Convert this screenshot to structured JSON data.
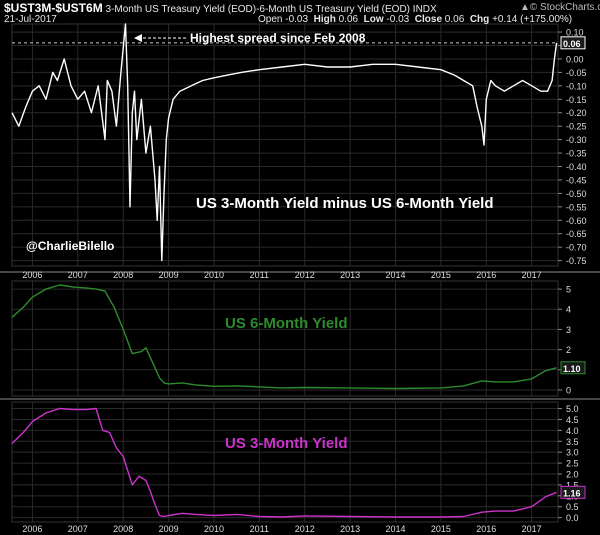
{
  "header": {
    "symbol": "$UST3M-$UST6M",
    "description": "3-Month US Treasury Yield (EOD)-6-Month US Treasury Yield (EOD)",
    "exchange": "INDX",
    "date": "21-Jul-2017",
    "open_label": "Open",
    "open_value": "-0.03",
    "high_label": "High",
    "high_value": "0.06",
    "low_label": "Low",
    "low_value": "-0.03",
    "close_label": "Close",
    "close_value": "0.06",
    "chg_label": "Chg",
    "chg_value": "+0.14 (+175.00%)",
    "watermark": "© StockCharts.com",
    "watermark_arrow": "▲"
  },
  "colors": {
    "background": "#000000",
    "spread_line": "#ffffff",
    "six_month_line": "#2e8b2e",
    "three_month_line": "#cc33cc",
    "grid": "#2a2a2a",
    "separator": "#8a8a8a"
  },
  "chart_data": [
    {
      "type": "line",
      "title": "US 3-Month Yield minus US 6-Month Yield",
      "annotation": "Highest spread since Feb 2008",
      "credit": "@CharlieBilello",
      "last_value_label": "0.06",
      "ylim": [
        -0.77,
        0.13
      ],
      "yticks": [
        "0.10",
        "0.05",
        "0.00",
        "-0.05",
        "-0.10",
        "-0.15",
        "-0.20",
        "-0.25",
        "-0.30",
        "-0.35",
        "-0.40",
        "-0.45",
        "-0.50",
        "-0.55",
        "-0.60",
        "-0.65",
        "-0.70",
        "-0.75"
      ],
      "x": [
        2005.55,
        2005.7,
        2005.85,
        2006.0,
        2006.15,
        2006.3,
        2006.45,
        2006.55,
        2006.7,
        2006.85,
        2007.0,
        2007.15,
        2007.3,
        2007.45,
        2007.6,
        2007.65,
        2007.75,
        2007.85,
        2007.95,
        2008.05,
        2008.1,
        2008.15,
        2008.2,
        2008.25,
        2008.3,
        2008.4,
        2008.5,
        2008.6,
        2008.7,
        2008.75,
        2008.8,
        2008.85,
        2008.9,
        2008.95,
        2009.0,
        2009.1,
        2009.25,
        2009.5,
        2009.75,
        2010.0,
        2010.3,
        2010.6,
        2011.0,
        2011.5,
        2012.0,
        2012.5,
        2013.0,
        2013.5,
        2014.0,
        2014.5,
        2015.0,
        2015.3,
        2015.5,
        2015.7,
        2015.8,
        2015.9,
        2015.95,
        2016.0,
        2016.1,
        2016.2,
        2016.4,
        2016.6,
        2016.8,
        2017.0,
        2017.2,
        2017.35,
        2017.45,
        2017.5,
        2017.55
      ],
      "y": [
        -0.2,
        -0.25,
        -0.18,
        -0.12,
        -0.1,
        -0.15,
        -0.05,
        -0.08,
        0.0,
        -0.1,
        -0.15,
        -0.12,
        -0.2,
        -0.1,
        -0.3,
        -0.08,
        -0.12,
        -0.25,
        -0.05,
        0.13,
        -0.1,
        -0.55,
        -0.2,
        -0.12,
        -0.3,
        -0.15,
        -0.35,
        -0.25,
        -0.45,
        -0.6,
        -0.4,
        -0.75,
        -0.5,
        -0.3,
        -0.22,
        -0.15,
        -0.12,
        -0.1,
        -0.08,
        -0.07,
        -0.06,
        -0.05,
        -0.04,
        -0.03,
        -0.02,
        -0.03,
        -0.03,
        -0.02,
        -0.02,
        -0.03,
        -0.04,
        -0.06,
        -0.08,
        -0.1,
        -0.18,
        -0.25,
        -0.32,
        -0.15,
        -0.08,
        -0.1,
        -0.12,
        -0.1,
        -0.08,
        -0.1,
        -0.12,
        -0.12,
        -0.08,
        0.0,
        0.06
      ]
    },
    {
      "type": "line",
      "title": "US 6-Month Yield",
      "last_value_label": "1.10",
      "ylim": [
        -0.3,
        5.4
      ],
      "yticks": [
        "5",
        "4",
        "3",
        "2",
        "1",
        "0"
      ],
      "x": [
        2005.55,
        2005.8,
        2006.0,
        2006.3,
        2006.6,
        2006.9,
        2007.2,
        2007.4,
        2007.6,
        2007.8,
        2008.0,
        2008.2,
        2008.4,
        2008.5,
        2008.6,
        2008.7,
        2008.8,
        2008.9,
        2009.0,
        2009.3,
        2009.6,
        2010.0,
        2010.5,
        2011.0,
        2011.5,
        2012.0,
        2013.0,
        2014.0,
        2015.0,
        2015.5,
        2015.9,
        2016.2,
        2016.6,
        2017.0,
        2017.3,
        2017.55
      ],
      "y": [
        3.6,
        4.1,
        4.6,
        5.0,
        5.2,
        5.1,
        5.05,
        5.0,
        4.9,
        4.1,
        3.0,
        1.8,
        1.9,
        2.1,
        1.6,
        1.1,
        0.6,
        0.35,
        0.3,
        0.35,
        0.25,
        0.18,
        0.2,
        0.15,
        0.1,
        0.12,
        0.1,
        0.07,
        0.1,
        0.2,
        0.45,
        0.4,
        0.4,
        0.55,
        0.95,
        1.1
      ]
    },
    {
      "type": "line",
      "title": "US 3-Month Yield",
      "last_value_label": "1.16",
      "ylim": [
        -0.2,
        5.3
      ],
      "yticks": [
        "5.0",
        "4.5",
        "4.0",
        "3.5",
        "3.0",
        "2.5",
        "2.0",
        "1.5",
        "1.0",
        "0.5",
        "0.0"
      ],
      "x": [
        2005.55,
        2005.8,
        2006.0,
        2006.3,
        2006.6,
        2006.9,
        2007.2,
        2007.4,
        2007.55,
        2007.7,
        2007.85,
        2008.0,
        2008.2,
        2008.35,
        2008.5,
        2008.6,
        2008.7,
        2008.8,
        2008.9,
        2009.0,
        2009.3,
        2009.6,
        2010.0,
        2010.5,
        2011.0,
        2011.5,
        2012.0,
        2013.0,
        2014.0,
        2015.0,
        2015.5,
        2015.9,
        2016.2,
        2016.6,
        2017.0,
        2017.3,
        2017.55
      ],
      "y": [
        3.4,
        3.9,
        4.4,
        4.8,
        5.0,
        4.95,
        4.95,
        5.0,
        4.0,
        3.9,
        3.2,
        2.8,
        1.5,
        1.9,
        1.7,
        1.2,
        0.6,
        0.1,
        0.05,
        0.1,
        0.2,
        0.15,
        0.1,
        0.15,
        0.05,
        0.03,
        0.08,
        0.05,
        0.03,
        0.03,
        0.05,
        0.25,
        0.3,
        0.3,
        0.5,
        0.95,
        1.16
      ]
    }
  ],
  "xaxis": {
    "years": [
      "2006",
      "2007",
      "2008",
      "2009",
      "2010",
      "2011",
      "2012",
      "2013",
      "2014",
      "2015",
      "2016",
      "2017"
    ]
  }
}
